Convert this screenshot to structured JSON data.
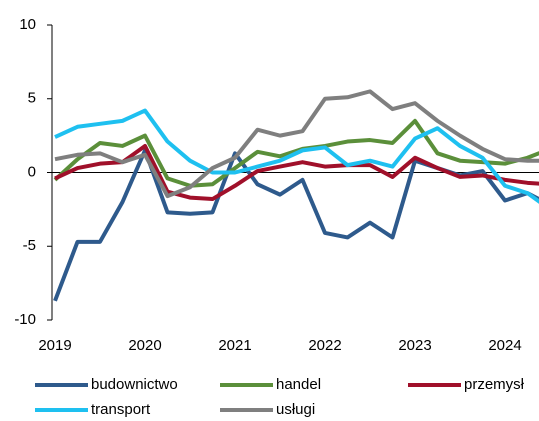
{
  "chart_data": {
    "type": "line",
    "categories": [
      "2019",
      null,
      null,
      null,
      "2020",
      null,
      null,
      null,
      "2021",
      null,
      null,
      null,
      "2022",
      null,
      null,
      null,
      "2023",
      null,
      null,
      null,
      "2024",
      null,
      null
    ],
    "series": [
      {
        "name": "budownictwo",
        "color": "#2e5a8c",
        "values": [
          -8.7,
          -4.7,
          -4.7,
          -2.0,
          1.5,
          -2.7,
          -2.8,
          -2.7,
          1.3,
          -0.8,
          -1.5,
          -0.5,
          -4.1,
          -4.4,
          -3.4,
          -4.4,
          0.8,
          0.3,
          -0.2,
          0.1,
          -1.9,
          -1.4,
          -2.2
        ]
      },
      {
        "name": "handel",
        "color": "#5b8f3a",
        "values": [
          -0.5,
          0.9,
          2.0,
          1.8,
          2.5,
          -0.4,
          -0.9,
          -0.8,
          0.3,
          1.4,
          1.1,
          1.6,
          1.8,
          2.1,
          2.2,
          2.0,
          3.5,
          1.3,
          0.8,
          0.7,
          0.6,
          1.0,
          1.6
        ]
      },
      {
        "name": "przemysł",
        "color": "#a0102a",
        "values": [
          -0.4,
          0.3,
          0.6,
          0.7,
          1.8,
          -1.3,
          -1.7,
          -1.8,
          -0.9,
          0.1,
          0.4,
          0.7,
          0.4,
          0.5,
          0.5,
          -0.3,
          1.0,
          0.3,
          -0.3,
          -0.2,
          -0.5,
          -0.7,
          -0.8
        ]
      },
      {
        "name": "transport",
        "color": "#1ec0f0",
        "values": [
          2.4,
          3.1,
          3.3,
          3.5,
          4.2,
          2.1,
          0.8,
          0.0,
          0.0,
          0.4,
          0.8,
          1.5,
          1.7,
          0.5,
          0.8,
          0.4,
          2.3,
          3.0,
          1.8,
          1.0,
          -0.9,
          -1.4,
          -2.5
        ]
      },
      {
        "name": "usługi",
        "color": "#7f7f7f",
        "values": [
          0.9,
          1.2,
          1.3,
          0.7,
          1.2,
          -1.6,
          -1.0,
          0.3,
          1.0,
          2.9,
          2.5,
          2.8,
          5.0,
          5.1,
          5.5,
          4.3,
          4.7,
          3.5,
          2.5,
          1.6,
          0.9,
          0.8,
          0.8
        ]
      }
    ],
    "ylim": [
      -10,
      10
    ],
    "yticks": [
      -10,
      -5,
      0,
      5,
      10
    ],
    "grid": false
  }
}
